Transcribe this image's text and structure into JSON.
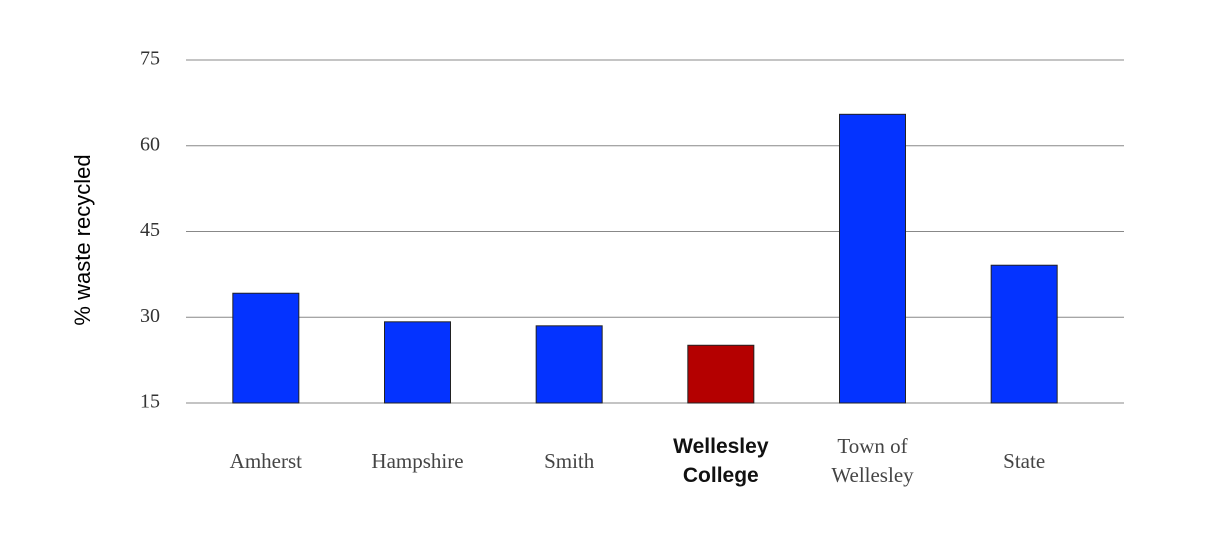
{
  "chart_data": {
    "type": "bar",
    "y_label": "% waste recycled",
    "categories": [
      "Amherst",
      "Hampshire",
      "Smith",
      "Wellesley College",
      "Town of Wellesley",
      "State"
    ],
    "values": [
      34.2,
      29.2,
      28.5,
      25.1,
      65.5,
      39.1
    ],
    "color": "#0433ff",
    "colors": [
      "#0433ff",
      "#0433ff",
      "#0433ff",
      "#b40000",
      "#0433ff",
      "#0433ff"
    ],
    "ylim": [
      15,
      75
    ],
    "yticks": [
      15,
      30,
      45,
      60,
      75
    ],
    "grid": true
  }
}
